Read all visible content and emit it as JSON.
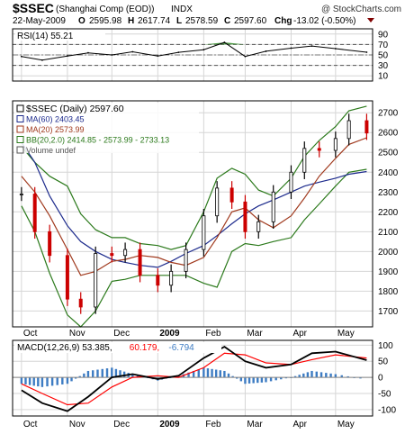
{
  "header": {
    "symbol": "$SSEC",
    "name": "(Shanghai Comp (EOD))",
    "exchange": "INDX",
    "watermark": "@ StockCharts.com",
    "date": "22-May-2009",
    "open_label": "O",
    "open": "2595.98",
    "high_label": "H",
    "high": "2617.74",
    "low_label": "L",
    "low": "2578.59",
    "close_label": "C",
    "close": "2597.60",
    "chg_label": "Chg",
    "chg": "-13.02 (-0.50%)"
  },
  "colors": {
    "up": "#000000",
    "down": "#cc0000",
    "ma60": "#1c2a8c",
    "ma20": "#a0391d",
    "bb": "#2c7a1c",
    "rsi_overbought_fill": "#4e9a46",
    "macd_signal": "#ff0000",
    "histogram": "#3d7cc3",
    "grid": "#d6d6d6"
  },
  "chart_data": [
    {
      "type": "line",
      "title": "RSI(14) 55.21",
      "legend": "RSI(14)",
      "legend_value": "55.21",
      "ylim": [
        0,
        100
      ],
      "yticks": [
        90,
        70,
        50,
        30,
        10
      ],
      "guides": [
        70,
        30
      ],
      "x": [
        "2008-10-01",
        "2008-10-15",
        "2008-11-01",
        "2008-11-15",
        "2008-12-01",
        "2008-12-15",
        "2009-01-01",
        "2009-01-15",
        "2009-02-01",
        "2009-02-15",
        "2009-03-01",
        "2009-03-15",
        "2009-04-01",
        "2009-04-15",
        "2009-05-01",
        "2009-05-22"
      ],
      "values": [
        47,
        40,
        48,
        54,
        50,
        56,
        48,
        55,
        60,
        74,
        47,
        57,
        63,
        67,
        62,
        55.21
      ]
    },
    {
      "type": "candlestick",
      "title": "$SSEC (Daily) 2597.60",
      "legend": [
        {
          "name": "$SSEC (Daily)",
          "value": "2597.60"
        },
        {
          "name": "MA(60)",
          "value": "2403.45"
        },
        {
          "name": "MA(20)",
          "value": "2573.99"
        },
        {
          "name": "BB(20,2.0)",
          "value": "2414.85 - 2573.99 - 2733.13"
        },
        {
          "name": "Volume undef",
          "value": ""
        }
      ],
      "ylim": [
        1620,
        2760
      ],
      "yticks": [
        2700,
        2600,
        2500,
        2400,
        2300,
        2200,
        2100,
        2000,
        1900,
        1800,
        1700
      ],
      "x_labels": [
        "Oct",
        "Nov",
        "Dec",
        "2009",
        "Feb",
        "Mar",
        "Apr",
        "May"
      ],
      "price": {
        "x": [
          "2008-10-01",
          "2008-10-10",
          "2008-10-20",
          "2008-11-01",
          "2008-11-10",
          "2008-11-20",
          "2008-12-01",
          "2008-12-10",
          "2008-12-20",
          "2009-01-01",
          "2009-01-10",
          "2009-01-20",
          "2009-02-01",
          "2009-02-10",
          "2009-02-20",
          "2009-03-01",
          "2009-03-10",
          "2009-03-20",
          "2009-04-01",
          "2009-04-10",
          "2009-04-20",
          "2009-05-01",
          "2009-05-10",
          "2009-05-22"
        ],
        "close": [
          2290,
          2100,
          1980,
          1760,
          1720,
          1990,
          1980,
          2010,
          1880,
          1830,
          1900,
          2010,
          2180,
          2320,
          2250,
          2100,
          2150,
          2300,
          2400,
          2520,
          2510,
          2570,
          2660,
          2597.6
        ]
      },
      "ma60": [
        2550,
        2450,
        2280,
        2130,
        2050,
        2000,
        1960,
        1945,
        1930,
        1920,
        1950,
        1990,
        2030,
        2080,
        2140,
        2190,
        2230,
        2260,
        2300,
        2330,
        2350,
        2370,
        2390,
        2403.45
      ],
      "ma20": [
        2380,
        2300,
        2180,
        2010,
        1880,
        1900,
        1950,
        1960,
        1980,
        1970,
        1945,
        1930,
        1970,
        2070,
        2200,
        2220,
        2160,
        2120,
        2180,
        2270,
        2380,
        2470,
        2540,
        2573.99
      ],
      "bb_upper": [
        2530,
        2450,
        2380,
        2330,
        2190,
        2110,
        2070,
        2070,
        2040,
        2030,
        2010,
        2030,
        2200,
        2370,
        2420,
        2390,
        2310,
        2280,
        2370,
        2480,
        2560,
        2630,
        2710,
        2733.13
      ],
      "bb_lower": [
        2230,
        2100,
        1890,
        1680,
        1620,
        1700,
        1850,
        1860,
        1880,
        1880,
        1880,
        1880,
        1840,
        1820,
        2000,
        2040,
        2030,
        2050,
        2070,
        2160,
        2240,
        2330,
        2400,
        2414.85
      ]
    },
    {
      "type": "line",
      "title": "MACD(12,26,9) 53.385, 60.179, -6.794",
      "legend": [
        {
          "name": "MACD(12,26,9)",
          "value": "53.385,"
        },
        {
          "name": "",
          "value": "60.179,"
        },
        {
          "name": "",
          "value": "-6.794"
        }
      ],
      "ylim": [
        -120,
        115
      ],
      "yticks": [
        100,
        50,
        0,
        -50,
        -100
      ],
      "x_labels": [
        "Oct",
        "Nov",
        "Dec",
        "2009",
        "Feb",
        "Mar",
        "Apr",
        "May"
      ],
      "x": [
        "2008-10-01",
        "2008-10-15",
        "2008-11-01",
        "2008-11-15",
        "2008-12-01",
        "2008-12-15",
        "2009-01-01",
        "2009-01-15",
        "2009-02-01",
        "2009-02-15",
        "2009-03-01",
        "2009-03-15",
        "2009-04-01",
        "2009-04-15",
        "2009-05-01",
        "2009-05-22"
      ],
      "series": [
        {
          "name": "MACD(12,26,9)",
          "values": [
            -40,
            -80,
            -105,
            -60,
            0,
            10,
            -5,
            5,
            60,
            95,
            50,
            30,
            40,
            75,
            80,
            53.385
          ]
        },
        {
          "name": "Signal",
          "values": [
            -20,
            -50,
            -85,
            -80,
            -30,
            0,
            5,
            0,
            30,
            75,
            70,
            45,
            40,
            55,
            70,
            60.179
          ]
        },
        {
          "name": "Histogram",
          "values": [
            -20,
            -30,
            -20,
            20,
            30,
            10,
            -10,
            5,
            30,
            20,
            -20,
            -15,
            0,
            20,
            10,
            -6.794
          ]
        }
      ]
    }
  ]
}
